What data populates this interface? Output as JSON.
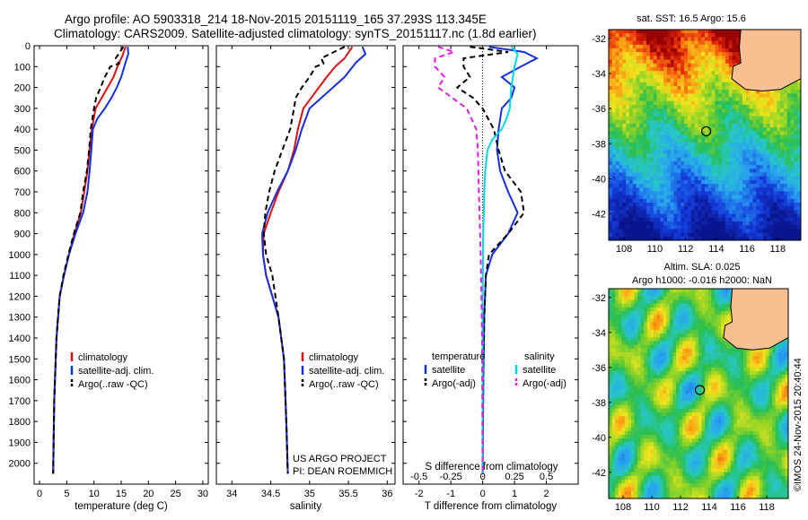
{
  "title": {
    "line1": "Argo profile: AO 5903318_214 18-Nov-2015 20151119_165 37.293S 113.345E",
    "line2": "Climatology: CARS2009. Satellite-adjusted climatology: synTS_20151117.nc (1.8d earlier)"
  },
  "colors": {
    "climatology": "#e01010",
    "satellite": "#1530e0",
    "argo": "#000000",
    "sat_sal": "#00d8e8",
    "argo_sal_adj": "#e020e0"
  },
  "chart_data": [
    {
      "type": "line",
      "panel": "temperature",
      "xlabel": "temperature (deg C)",
      "ylabel": "",
      "xlim": [
        -1,
        31
      ],
      "ylim": [
        2100,
        0
      ],
      "xticks": [
        0,
        5,
        10,
        15,
        20,
        25,
        30
      ],
      "yticks": [
        0,
        100,
        200,
        300,
        400,
        500,
        600,
        700,
        800,
        900,
        1000,
        1100,
        1200,
        1300,
        1400,
        1500,
        1600,
        1700,
        1800,
        1900,
        2000
      ],
      "legend": [
        "climatology",
        "satellite-adj. clim.",
        "Argo(..raw -QC)"
      ],
      "series": [
        {
          "name": "climatology",
          "style": "solid",
          "color": "#e01010",
          "x": [
            15.8,
            15.2,
            14.3,
            13.6,
            12.5,
            11.4,
            10.3,
            9.6,
            9.2,
            8.8,
            8.2,
            7.6,
            6.4,
            5.4,
            4.5,
            3.7,
            3.1,
            2.7,
            2.5
          ],
          "y": [
            5,
            50,
            100,
            150,
            200,
            250,
            300,
            400,
            500,
            600,
            700,
            800,
            900,
            1000,
            1100,
            1200,
            1400,
            1700,
            2050
          ]
        },
        {
          "name": "satellite-adj. clim.",
          "style": "solid",
          "color": "#1530e0",
          "x": [
            16.2,
            16.3,
            15.8,
            15.0,
            14.2,
            13.2,
            12.0,
            10.6,
            9.8,
            9.5,
            9.2,
            8.8,
            8.0,
            6.6,
            5.4,
            4.5,
            3.7,
            3.1,
            2.7,
            2.5
          ],
          "y": [
            5,
            40,
            80,
            150,
            200,
            250,
            300,
            350,
            400,
            500,
            600,
            700,
            800,
            900,
            1000,
            1100,
            1200,
            1400,
            1700,
            2050
          ]
        },
        {
          "name": "Argo(..raw -QC)",
          "style": "dashed",
          "color": "#000000",
          "x": [
            15.4,
            14.0,
            14.6,
            13.0,
            12.0,
            11.2,
            10.4,
            10.0,
            9.4,
            9.1,
            8.7,
            8.0,
            7.5,
            6.3,
            5.3,
            4.4,
            3.7,
            3.1,
            2.7,
            2.5
          ],
          "y": [
            5,
            60,
            85,
            100,
            150,
            200,
            250,
            300,
            400,
            500,
            600,
            700,
            800,
            900,
            1000,
            1100,
            1200,
            1400,
            1700,
            2050
          ]
        }
      ],
      "annotations": []
    },
    {
      "type": "line",
      "panel": "salinity",
      "xlabel": "salinity",
      "ylabel": "",
      "xlim": [
        33.8,
        36.1
      ],
      "ylim": [
        2100,
        0
      ],
      "xticks": [
        34,
        34.5,
        35,
        35.5,
        36
      ],
      "xtick_labels": [
        "34",
        "34.5",
        "35",
        "35.5",
        "36"
      ],
      "legend": [
        "climatology",
        "satellite-adj. clim.",
        "Argo(..raw -QC)"
      ],
      "series": [
        {
          "name": "climatology",
          "style": "solid",
          "color": "#e01010",
          "x": [
            35.55,
            35.45,
            35.33,
            35.22,
            35.12,
            35.02,
            34.92,
            34.85,
            34.8,
            34.72,
            34.6,
            34.5,
            34.41,
            34.4,
            34.44,
            34.52,
            34.6,
            34.67,
            34.7,
            34.72
          ],
          "y": [
            5,
            60,
            100,
            150,
            200,
            250,
            300,
            400,
            500,
            600,
            700,
            800,
            900,
            1000,
            1100,
            1200,
            1300,
            1500,
            1800,
            2050
          ]
        },
        {
          "name": "satellite-adj. clim.",
          "style": "solid",
          "color": "#1530e0",
          "x": [
            35.68,
            35.72,
            35.6,
            35.45,
            35.3,
            35.15,
            35.0,
            34.9,
            34.82,
            34.72,
            34.58,
            34.46,
            34.39,
            34.4,
            34.44,
            34.52,
            34.6,
            34.67,
            34.7,
            34.72
          ],
          "y": [
            5,
            40,
            80,
            150,
            200,
            250,
            300,
            400,
            500,
            600,
            700,
            800,
            900,
            1000,
            1100,
            1200,
            1300,
            1500,
            1800,
            2050
          ]
        },
        {
          "name": "Argo(..raw -QC)",
          "style": "dashed",
          "color": "#000000",
          "x": [
            35.45,
            35.15,
            35.18,
            35.08,
            35.0,
            34.9,
            34.82,
            34.8,
            34.75,
            34.65,
            34.55,
            34.48,
            34.43,
            34.41,
            34.44,
            34.52,
            34.6,
            34.67,
            34.7,
            34.72
          ],
          "y": [
            5,
            60,
            85,
            100,
            150,
            200,
            250,
            300,
            400,
            500,
            600,
            700,
            800,
            900,
            1000,
            1100,
            1300,
            1500,
            1800,
            2050
          ]
        }
      ],
      "annotations": [
        "US ARGO PROJECT",
        "PI: DEAN ROEMMICH"
      ]
    },
    {
      "type": "line",
      "panel": "difference",
      "xlabel": "T difference from climatology",
      "title": "S difference from climatology",
      "xlim": [
        -2.5,
        3
      ],
      "ylim": [
        2100,
        0
      ],
      "xticks": [
        -2,
        -1,
        0,
        1,
        2
      ],
      "top_ticks": [
        -0.5,
        -0.25,
        0,
        0.25,
        0.5
      ],
      "top_tick_labels": [
        "-0.5",
        "-0.25",
        "0",
        "0.25",
        "0.5"
      ],
      "legend_headers": [
        "temperature",
        "salinity"
      ],
      "legend": [
        "satellite",
        "Argo(-adj)",
        "satellite",
        "Argo(-adj)"
      ],
      "series": [
        {
          "name": "satellite",
          "group": "temperature",
          "style": "solid",
          "color": "#1530e0",
          "x": [
            0.2,
            1.3,
            1.7,
            1.2,
            0.6,
            1.0,
            0.9,
            0.6,
            0.5,
            0.45,
            0.55,
            0.8,
            1.1,
            0.8,
            0.3,
            0.1,
            0.05,
            0.02,
            0.0
          ],
          "y": [
            5,
            30,
            60,
            100,
            150,
            200,
            250,
            300,
            400,
            500,
            600,
            700,
            800,
            900,
            1000,
            1100,
            1300,
            1600,
            2050
          ]
        },
        {
          "name": "Argo(-adj)",
          "group": "temperature",
          "style": "dashed",
          "color": "#000000",
          "x": [
            -0.4,
            0.8,
            -0.6,
            -0.6,
            -0.4,
            -0.8,
            -0.3,
            0.0,
            0.35,
            0.5,
            0.7,
            1.2,
            1.3,
            0.8,
            0.2,
            0.1,
            0.05,
            0.02,
            0.0
          ],
          "y": [
            5,
            30,
            60,
            100,
            150,
            200,
            250,
            300,
            400,
            500,
            600,
            700,
            800,
            900,
            1000,
            1100,
            1300,
            1600,
            2050
          ]
        },
        {
          "name": "satellite",
          "group": "salinity",
          "style": "solid",
          "color": "#00d8e8",
          "x": [
            0.9,
            1.1,
            1.0,
            0.9,
            0.85,
            0.75,
            0.6,
            0.3,
            0.15,
            0.08,
            0.05,
            0.02,
            0.0,
            0.0
          ],
          "y": [
            5,
            40,
            100,
            200,
            300,
            350,
            400,
            450,
            500,
            600,
            700,
            900,
            1200,
            2050
          ]
        },
        {
          "name": "Argo(-adj)",
          "group": "salinity",
          "style": "dashed",
          "color": "#e020e0",
          "x": [
            -1.4,
            -0.9,
            -1.5,
            -1.5,
            -1.2,
            -1.4,
            -0.5,
            -0.2,
            -0.15,
            -0.12,
            -0.08,
            -0.05,
            -0.02,
            0.0
          ],
          "y": [
            5,
            30,
            60,
            100,
            150,
            200,
            300,
            400,
            500,
            700,
            900,
            1100,
            1400,
            2050
          ]
        }
      ],
      "annotations": []
    },
    {
      "type": "heatmap",
      "panel": "sst-map",
      "title": "sat. SST: 16.5 Argo: 15.6",
      "xlim": [
        107,
        119.5
      ],
      "ylim": [
        -43.5,
        -31.5
      ],
      "xticks": [
        108,
        110,
        112,
        114,
        116,
        118
      ],
      "yticks": [
        -32,
        -34,
        -36,
        -38,
        -40,
        -42
      ],
      "marker": {
        "lon": 113.345,
        "lat": -37.293
      }
    },
    {
      "type": "heatmap",
      "panel": "sla-map",
      "title_lines": [
        "Altim. SLA: 0.025",
        "Argo h1000: -0.016 h2000: NaN"
      ],
      "xlim": [
        107,
        119.5
      ],
      "ylim": [
        -43.5,
        -31.5
      ],
      "xticks": [
        108,
        110,
        112,
        114,
        116,
        118
      ],
      "yticks": [
        -32,
        -34,
        -36,
        -38,
        -40,
        -42
      ],
      "marker": {
        "lon": 113.345,
        "lat": -37.293
      }
    }
  ],
  "watermark": "©IMOS 24-Nov-2015 20:40:44"
}
